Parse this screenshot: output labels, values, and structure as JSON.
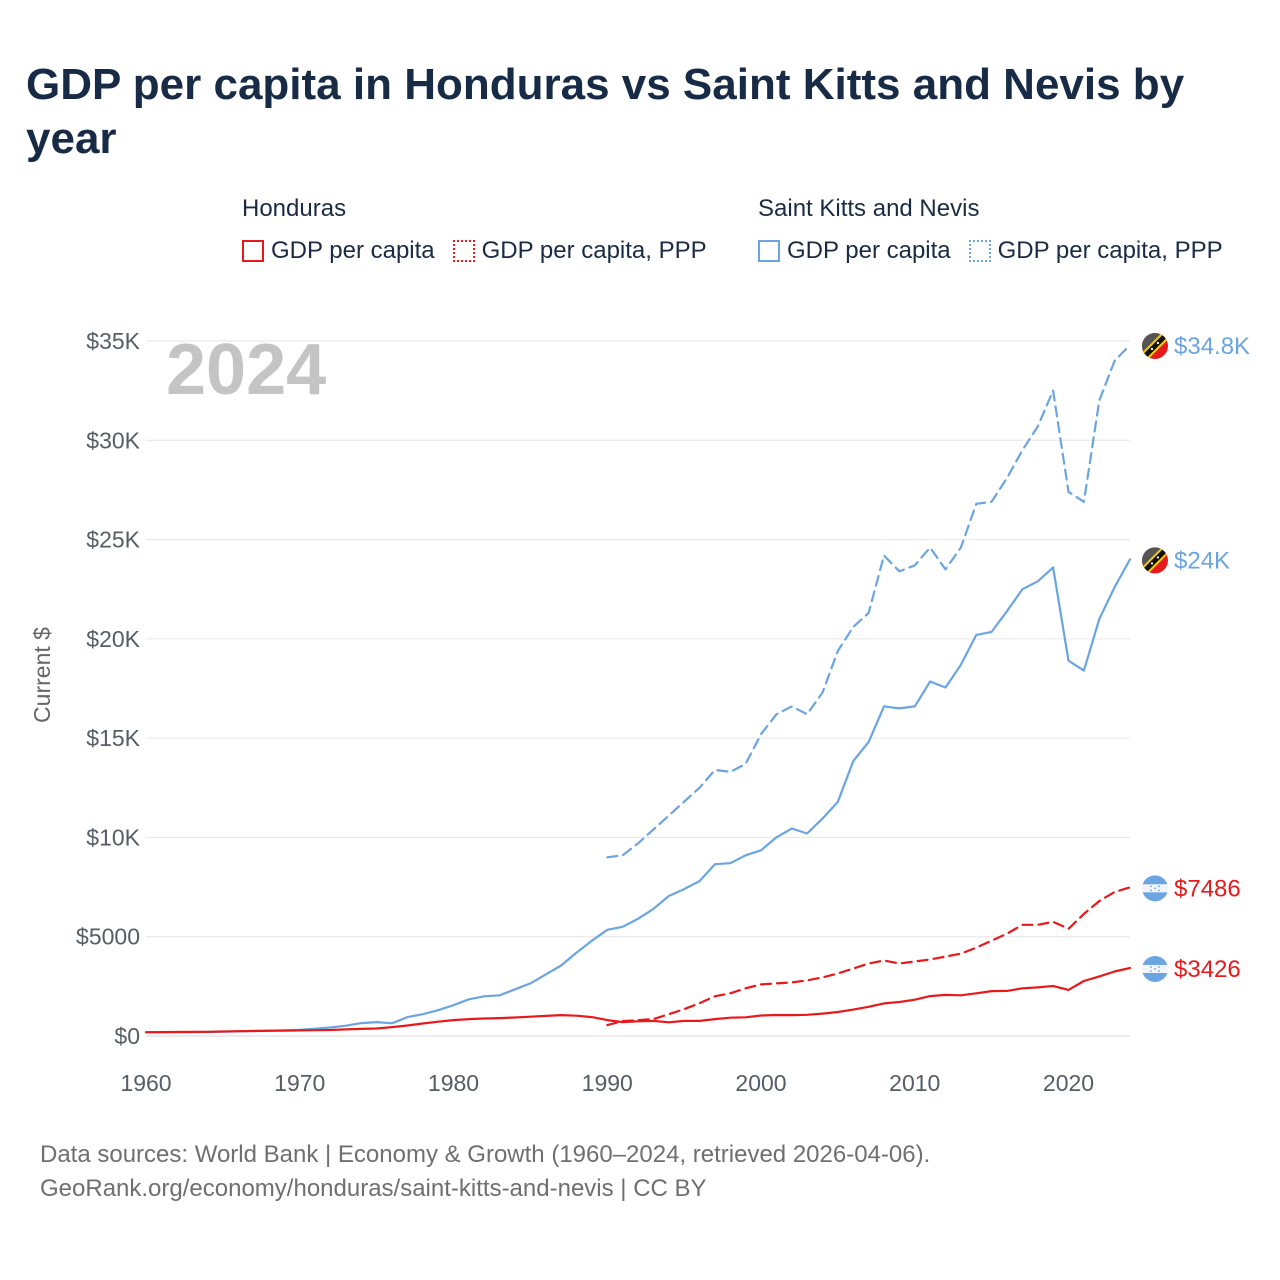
{
  "page": {
    "title": "GDP per capita in Honduras vs Saint Kitts and Nevis by year",
    "footer_line1": "Data sources: World Bank | Economy & Growth (1960–2024, retrieved 2026-04-06).",
    "footer_line2": "GeoRank.org/economy/honduras/saint-kitts-and-nevis | CC BY"
  },
  "legend": {
    "honduras": {
      "title": "Honduras",
      "gdp": "GDP per capita",
      "ppp": "GDP per capita, PPP",
      "color": "#e8191b"
    },
    "skn": {
      "title": "Saint Kitts and Nevis",
      "gdp": "GDP per capita",
      "ppp": "GDP per capita, PPP",
      "color": "#6aa5e2"
    }
  },
  "chart_data": {
    "type": "line",
    "title": "GDP per capita in Honduras vs Saint Kitts and Nevis by year",
    "xlabel": "",
    "ylabel": "Current $",
    "xlim": [
      1960,
      2024
    ],
    "ylim": [
      0,
      35000
    ],
    "x_ticks": [
      1960,
      1970,
      1980,
      1990,
      2000,
      2010,
      2020
    ],
    "y_ticks": [
      {
        "value": 0,
        "label": "$0"
      },
      {
        "value": 5000,
        "label": "$5000"
      },
      {
        "value": 10000,
        "label": "$10K"
      },
      {
        "value": 15000,
        "label": "$15K"
      },
      {
        "value": 20000,
        "label": "$20K"
      },
      {
        "value": 25000,
        "label": "$25K"
      },
      {
        "value": 30000,
        "label": "$30K"
      },
      {
        "value": 35000,
        "label": "$35K"
      }
    ],
    "year_label": "2024",
    "grid": true,
    "series": [
      {
        "name": "Saint Kitts and Nevis - GDP per capita, PPP",
        "country": "Saint Kitts and Nevis",
        "metric": "ppp",
        "color": "#6aa5e2",
        "dashed": true,
        "end_label": "$34.8K",
        "x": [
          1990,
          1991,
          1992,
          1993,
          1994,
          1995,
          1996,
          1997,
          1998,
          1999,
          2000,
          2001,
          2002,
          2003,
          2004,
          2005,
          2006,
          2007,
          2008,
          2009,
          2010,
          2011,
          2012,
          2013,
          2014,
          2015,
          2016,
          2017,
          2018,
          2019,
          2020,
          2021,
          2022,
          2023,
          2024
        ],
        "values": [
          9000,
          9100,
          9700,
          10400,
          11100,
          11800,
          12500,
          13400,
          13300,
          13700,
          15200,
          16200,
          16600,
          16200,
          17300,
          19400,
          20600,
          21300,
          24200,
          23400,
          23700,
          24600,
          23500,
          24600,
          26800,
          26900,
          28100,
          29500,
          30700,
          32500,
          27400,
          26900,
          32000,
          34000,
          34800
        ]
      },
      {
        "name": "Saint Kitts and Nevis - GDP per capita",
        "country": "Saint Kitts and Nevis",
        "metric": "gdp",
        "color": "#6aa5e2",
        "dashed": false,
        "end_label": "$24K",
        "x": [
          1960,
          1961,
          1962,
          1963,
          1964,
          1965,
          1966,
          1967,
          1968,
          1969,
          1970,
          1971,
          1972,
          1973,
          1974,
          1975,
          1976,
          1977,
          1978,
          1979,
          1980,
          1981,
          1982,
          1983,
          1984,
          1985,
          1986,
          1987,
          1988,
          1989,
          1990,
          1991,
          1992,
          1993,
          1994,
          1995,
          1996,
          1997,
          1998,
          1999,
          2000,
          2001,
          2002,
          2003,
          2004,
          2005,
          2006,
          2007,
          2008,
          2009,
          2010,
          2011,
          2012,
          2013,
          2014,
          2015,
          2016,
          2017,
          2018,
          2019,
          2020,
          2021,
          2022,
          2023,
          2024
        ],
        "values": [
          180,
          185,
          190,
          195,
          200,
          215,
          230,
          250,
          270,
          285,
          310,
          370,
          430,
          520,
          650,
          700,
          640,
          950,
          1100,
          1300,
          1550,
          1850,
          2000,
          2050,
          2350,
          2650,
          3100,
          3550,
          4200,
          4800,
          5350,
          5500,
          5900,
          6400,
          7050,
          7400,
          7800,
          8650,
          8700,
          9100,
          9350,
          10000,
          10450,
          10200,
          10950,
          11800,
          13850,
          14800,
          16600,
          16500,
          16600,
          17850,
          17550,
          18700,
          20200,
          20350,
          21400,
          22500,
          22900,
          23600,
          18900,
          18400,
          21000,
          22600,
          24000
        ]
      },
      {
        "name": "Honduras - GDP per capita, PPP",
        "country": "Honduras",
        "metric": "ppp",
        "color": "#e8191b",
        "dashed": true,
        "end_label": "$7486",
        "x": [
          1990,
          1991,
          1992,
          1993,
          1994,
          1995,
          1996,
          1997,
          1998,
          1999,
          2000,
          2001,
          2002,
          2003,
          2004,
          2005,
          2006,
          2007,
          2008,
          2009,
          2010,
          2011,
          2012,
          2013,
          2014,
          2015,
          2016,
          2017,
          2018,
          2019,
          2020,
          2021,
          2022,
          2023,
          2024
        ],
        "values": [
          550,
          750,
          800,
          850,
          1100,
          1350,
          1650,
          2000,
          2150,
          2400,
          2600,
          2650,
          2700,
          2800,
          2950,
          3150,
          3400,
          3650,
          3800,
          3650,
          3750,
          3850,
          4000,
          4150,
          4450,
          4800,
          5150,
          5600,
          5600,
          5750,
          5400,
          6150,
          6800,
          7250,
          7486
        ]
      },
      {
        "name": "Honduras - GDP per capita",
        "country": "Honduras",
        "metric": "gdp",
        "color": "#e8191b",
        "dashed": false,
        "end_label": "$3426",
        "x": [
          1960,
          1961,
          1962,
          1963,
          1964,
          1965,
          1966,
          1967,
          1968,
          1969,
          1970,
          1971,
          1972,
          1973,
          1974,
          1975,
          1976,
          1977,
          1978,
          1979,
          1980,
          1981,
          1982,
          1983,
          1984,
          1985,
          1986,
          1987,
          1988,
          1989,
          1990,
          1991,
          1992,
          1993,
          1994,
          1995,
          1996,
          1997,
          1998,
          1999,
          2000,
          2001,
          2002,
          2003,
          2004,
          2005,
          2006,
          2007,
          2008,
          2009,
          2010,
          2011,
          2012,
          2013,
          2014,
          2015,
          2016,
          2017,
          2018,
          2019,
          2020,
          2021,
          2022,
          2023,
          2024
        ],
        "values": [
          190,
          195,
          200,
          205,
          210,
          225,
          240,
          250,
          260,
          270,
          280,
          290,
          300,
          330,
          360,
          380,
          450,
          530,
          630,
          720,
          800,
          850,
          880,
          900,
          930,
          970,
          1010,
          1050,
          1020,
          950,
          800,
          700,
          740,
          760,
          690,
          760,
          760,
          850,
          920,
          940,
          1030,
          1060,
          1050,
          1070,
          1130,
          1210,
          1330,
          1470,
          1640,
          1710,
          1830,
          2010,
          2070,
          2050,
          2150,
          2260,
          2270,
          2400,
          2450,
          2520,
          2320,
          2770,
          3000,
          3250,
          3426
        ]
      }
    ]
  }
}
